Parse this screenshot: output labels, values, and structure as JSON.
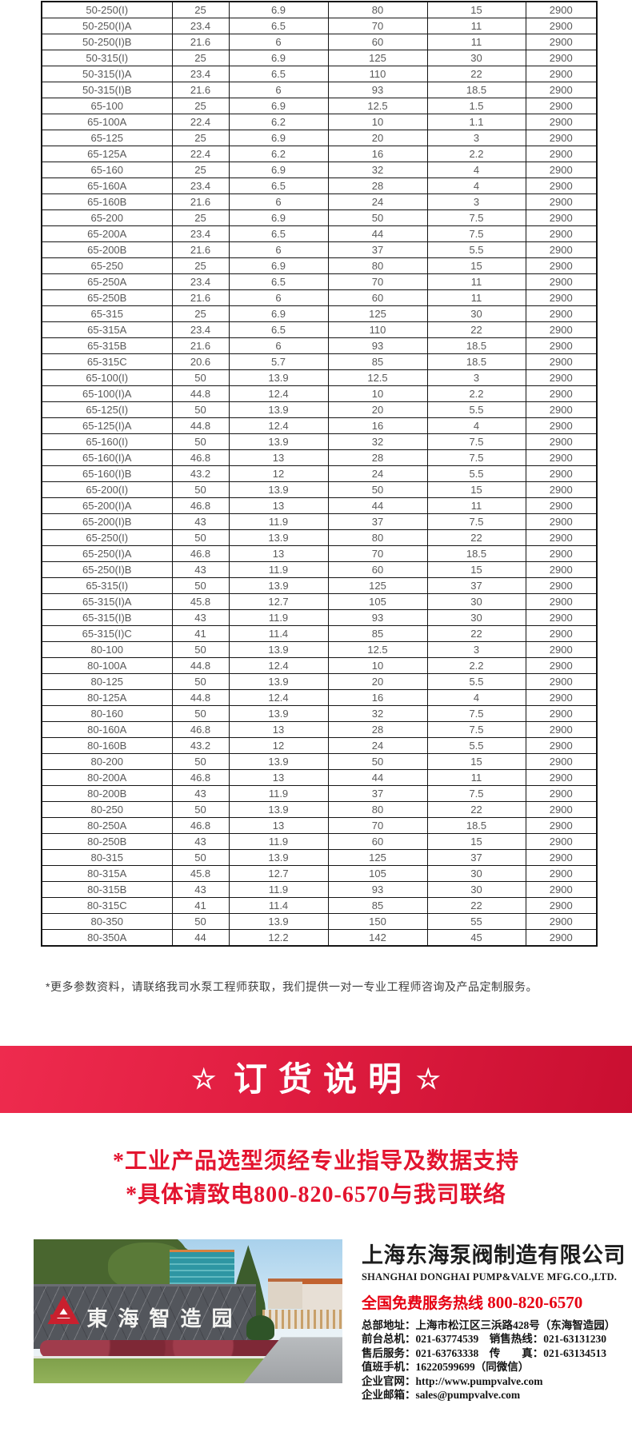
{
  "table": {
    "rows": [
      [
        "50-250(I)",
        "25",
        "6.9",
        "80",
        "15",
        "2900"
      ],
      [
        "50-250(I)A",
        "23.4",
        "6.5",
        "70",
        "11",
        "2900"
      ],
      [
        "50-250(I)B",
        "21.6",
        "6",
        "60",
        "11",
        "2900"
      ],
      [
        "50-315(I)",
        "25",
        "6.9",
        "125",
        "30",
        "2900"
      ],
      [
        "50-315(I)A",
        "23.4",
        "6.5",
        "110",
        "22",
        "2900"
      ],
      [
        "50-315(I)B",
        "21.6",
        "6",
        "93",
        "18.5",
        "2900"
      ],
      [
        "65-100",
        "25",
        "6.9",
        "12.5",
        "1.5",
        "2900"
      ],
      [
        "65-100A",
        "22.4",
        "6.2",
        "10",
        "1.1",
        "2900"
      ],
      [
        "65-125",
        "25",
        "6.9",
        "20",
        "3",
        "2900"
      ],
      [
        "65-125A",
        "22.4",
        "6.2",
        "16",
        "2.2",
        "2900"
      ],
      [
        "65-160",
        "25",
        "6.9",
        "32",
        "4",
        "2900"
      ],
      [
        "65-160A",
        "23.4",
        "6.5",
        "28",
        "4",
        "2900"
      ],
      [
        "65-160B",
        "21.6",
        "6",
        "24",
        "3",
        "2900"
      ],
      [
        "65-200",
        "25",
        "6.9",
        "50",
        "7.5",
        "2900"
      ],
      [
        "65-200A",
        "23.4",
        "6.5",
        "44",
        "7.5",
        "2900"
      ],
      [
        "65-200B",
        "21.6",
        "6",
        "37",
        "5.5",
        "2900"
      ],
      [
        "65-250",
        "25",
        "6.9",
        "80",
        "15",
        "2900"
      ],
      [
        "65-250A",
        "23.4",
        "6.5",
        "70",
        "11",
        "2900"
      ],
      [
        "65-250B",
        "21.6",
        "6",
        "60",
        "11",
        "2900"
      ],
      [
        "65-315",
        "25",
        "6.9",
        "125",
        "30",
        "2900"
      ],
      [
        "65-315A",
        "23.4",
        "6.5",
        "110",
        "22",
        "2900"
      ],
      [
        "65-315B",
        "21.6",
        "6",
        "93",
        "18.5",
        "2900"
      ],
      [
        "65-315C",
        "20.6",
        "5.7",
        "85",
        "18.5",
        "2900"
      ],
      [
        "65-100(I)",
        "50",
        "13.9",
        "12.5",
        "3",
        "2900"
      ],
      [
        "65-100(I)A",
        "44.8",
        "12.4",
        "10",
        "2.2",
        "2900"
      ],
      [
        "65-125(I)",
        "50",
        "13.9",
        "20",
        "5.5",
        "2900"
      ],
      [
        "65-125(I)A",
        "44.8",
        "12.4",
        "16",
        "4",
        "2900"
      ],
      [
        "65-160(I)",
        "50",
        "13.9",
        "32",
        "7.5",
        "2900"
      ],
      [
        "65-160(I)A",
        "46.8",
        "13",
        "28",
        "7.5",
        "2900"
      ],
      [
        "65-160(I)B",
        "43.2",
        "12",
        "24",
        "5.5",
        "2900"
      ],
      [
        "65-200(I)",
        "50",
        "13.9",
        "50",
        "15",
        "2900"
      ],
      [
        "65-200(I)A",
        "46.8",
        "13",
        "44",
        "11",
        "2900"
      ],
      [
        "65-200(I)B",
        "43",
        "11.9",
        "37",
        "7.5",
        "2900"
      ],
      [
        "65-250(I)",
        "50",
        "13.9",
        "80",
        "22",
        "2900"
      ],
      [
        "65-250(I)A",
        "46.8",
        "13",
        "70",
        "18.5",
        "2900"
      ],
      [
        "65-250(I)B",
        "43",
        "11.9",
        "60",
        "15",
        "2900"
      ],
      [
        "65-315(I)",
        "50",
        "13.9",
        "125",
        "37",
        "2900"
      ],
      [
        "65-315(I)A",
        "45.8",
        "12.7",
        "105",
        "30",
        "2900"
      ],
      [
        "65-315(I)B",
        "43",
        "11.9",
        "93",
        "30",
        "2900"
      ],
      [
        "65-315(I)C",
        "41",
        "11.4",
        "85",
        "22",
        "2900"
      ],
      [
        "80-100",
        "50",
        "13.9",
        "12.5",
        "3",
        "2900"
      ],
      [
        "80-100A",
        "44.8",
        "12.4",
        "10",
        "2.2",
        "2900"
      ],
      [
        "80-125",
        "50",
        "13.9",
        "20",
        "5.5",
        "2900"
      ],
      [
        "80-125A",
        "44.8",
        "12.4",
        "16",
        "4",
        "2900"
      ],
      [
        "80-160",
        "50",
        "13.9",
        "32",
        "7.5",
        "2900"
      ],
      [
        "80-160A",
        "46.8",
        "13",
        "28",
        "7.5",
        "2900"
      ],
      [
        "80-160B",
        "43.2",
        "12",
        "24",
        "5.5",
        "2900"
      ],
      [
        "80-200",
        "50",
        "13.9",
        "50",
        "15",
        "2900"
      ],
      [
        "80-200A",
        "46.8",
        "13",
        "44",
        "11",
        "2900"
      ],
      [
        "80-200B",
        "43",
        "11.9",
        "37",
        "7.5",
        "2900"
      ],
      [
        "80-250",
        "50",
        "13.9",
        "80",
        "22",
        "2900"
      ],
      [
        "80-250A",
        "46.8",
        "13",
        "70",
        "18.5",
        "2900"
      ],
      [
        "80-250B",
        "43",
        "11.9",
        "60",
        "15",
        "2900"
      ],
      [
        "80-315",
        "50",
        "13.9",
        "125",
        "37",
        "2900"
      ],
      [
        "80-315A",
        "45.8",
        "12.7",
        "105",
        "30",
        "2900"
      ],
      [
        "80-315B",
        "43",
        "11.9",
        "93",
        "30",
        "2900"
      ],
      [
        "80-315C",
        "41",
        "11.4",
        "85",
        "22",
        "2900"
      ],
      [
        "80-350",
        "50",
        "13.9",
        "150",
        "55",
        "2900"
      ],
      [
        "80-350A",
        "44",
        "12.2",
        "142",
        "45",
        "2900"
      ]
    ]
  },
  "note": "*更多参数资料，请联络我司水泵工程师获取，我们提供一对一专业工程师咨询及产品定制服务。",
  "banner": {
    "star_left": "☆",
    "title": "订货说明",
    "star_right": "☆"
  },
  "slogans": [
    "*工业产品选型须经专业指导及数据支持",
    "*具体请致电800-820-6570与我司联络"
  ],
  "footer": {
    "photo_sign": "東海智造园",
    "company_cn": "上海东海泵阀制造有限公司",
    "company_en": "SHANGHAI DONGHAI PUMP&VALVE MFG.CO.,LTD.",
    "hotline_label": "全国免费服务热线",
    "hotline_number": "800-820-6570",
    "contacts": [
      "总部地址：上海市松江区三浜路428号（东海智造园）",
      "前台总机：021-63774539　销售热线：021-63131230",
      "售后服务：021-63763338　传　　真：021-63134513",
      "值班手机：16220599699（同微信）",
      "企业官网：http://www.pumpvalve.com",
      "企业邮箱：sales@pumpvalve.com"
    ]
  },
  "colors": {
    "banner_red_start": "#ee2b4e",
    "banner_red_end": "#c90f31",
    "accent_red": "#e3142f",
    "hotline_red": "#e60012",
    "logo_red": "#c9202e",
    "table_text": "#595959"
  }
}
